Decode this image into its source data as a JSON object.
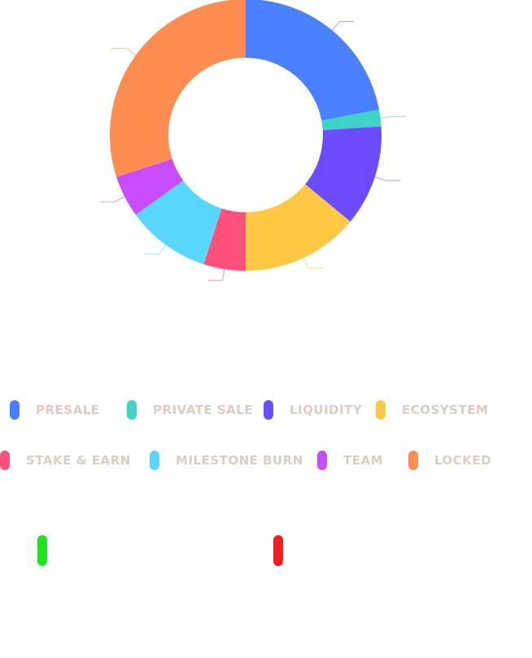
{
  "chart_data": {
    "type": "pie",
    "donut": true,
    "categories": [
      "PRESALE",
      "PRIVATE SALE",
      "LIQUIDITY",
      "ECOSYSTEM",
      "STAKE & EARN",
      "MILESTONE BURN",
      "TEAM",
      "LOCKED"
    ],
    "values": [
      22,
      2,
      12,
      14,
      5,
      10,
      5,
      30
    ],
    "colors": [
      "#4a80ff",
      "#3fd2c7",
      "#6b4bff",
      "#ffc844",
      "#ff4f7b",
      "#58d6ff",
      "#c94bff",
      "#ff8d52"
    ],
    "legend": "bottom"
  },
  "legend_rows": [
    [
      {
        "label": "PRESALE",
        "color": "#4a80ff"
      },
      {
        "label": "PRIVATE SALE",
        "color": "#3fd2c7"
      },
      {
        "label": "LIQUIDITY",
        "color": "#6b4bff"
      },
      {
        "label": "ECOSYSTEM",
        "color": "#ffc844"
      }
    ],
    [
      {
        "label": "STAKE & EARN",
        "color": "#ff4f7b"
      },
      {
        "label": "MILESTONE BURN",
        "color": "#58d6ff"
      },
      {
        "label": "TEAM",
        "color": "#c94bff"
      },
      {
        "label": "LOCKED",
        "color": "#ff8d52"
      }
    ]
  ],
  "indicators": [
    {
      "color": "#1fe51f"
    },
    {
      "color": "#f21f1f"
    }
  ]
}
